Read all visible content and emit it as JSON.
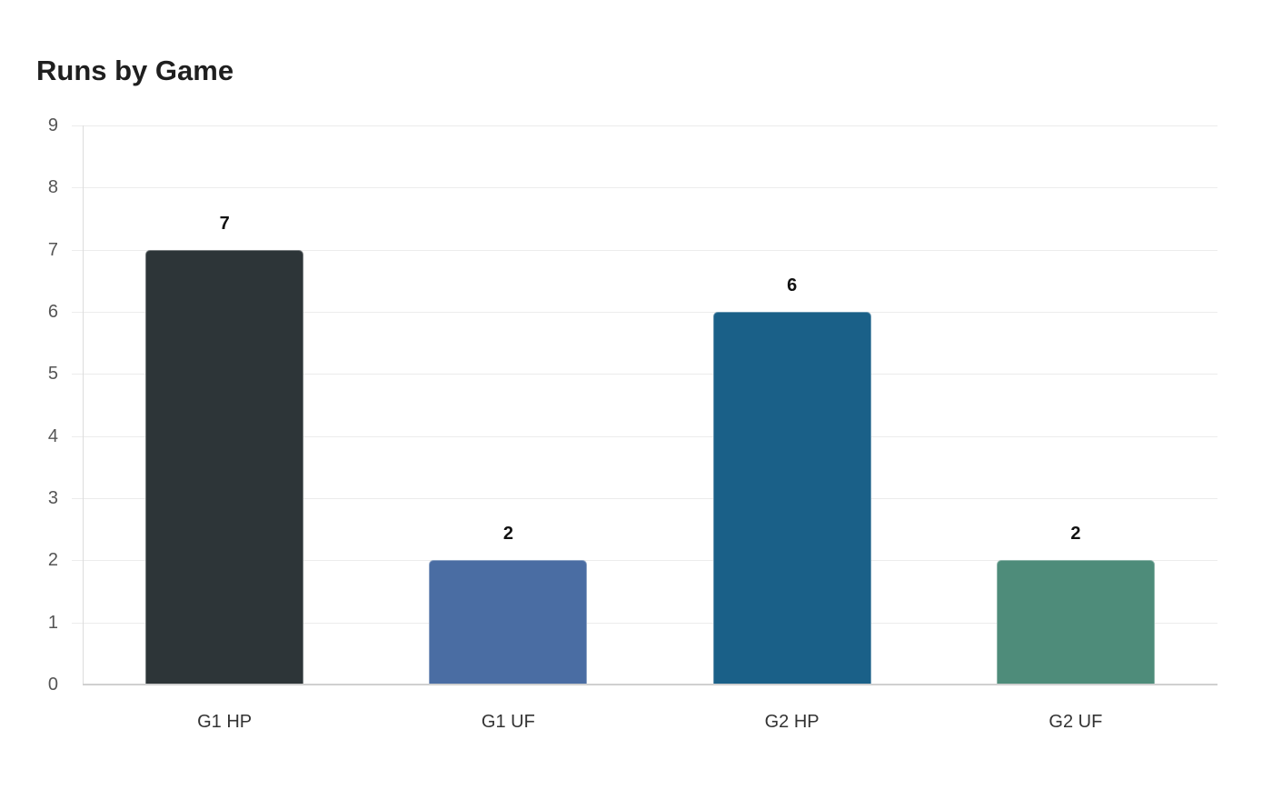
{
  "title": "Runs by Game",
  "chart_data": {
    "type": "bar",
    "title": "Runs by Game",
    "xlabel": "",
    "ylabel": "",
    "categories": [
      "G1 HP",
      "G1 UF",
      "G2 HP",
      "G2 UF"
    ],
    "values": [
      7,
      2,
      6,
      2
    ],
    "colors": [
      "#2d3538",
      "#4a6da3",
      "#1a6088",
      "#4e8c7a"
    ],
    "data_labels": [
      "7",
      "2",
      "6",
      "2"
    ],
    "ylim": [
      0,
      9
    ],
    "yticks": [
      "0",
      "1",
      "2",
      "3",
      "4",
      "5",
      "6",
      "7",
      "8",
      "9"
    ],
    "grid": true,
    "legend": null
  }
}
